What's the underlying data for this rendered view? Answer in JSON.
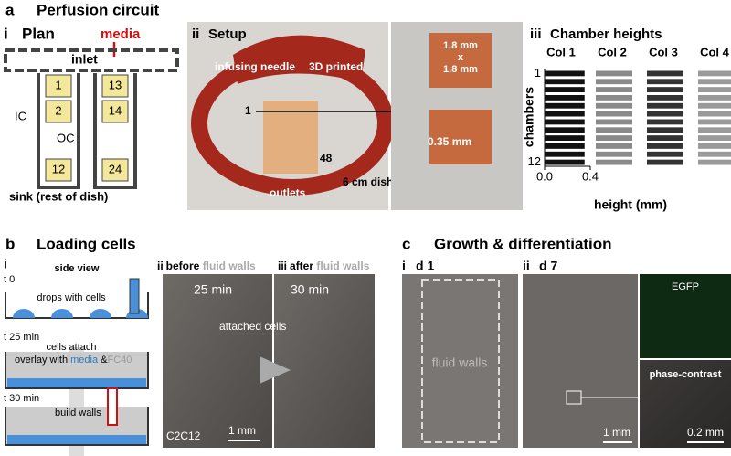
{
  "panel_a": {
    "letter": "a",
    "title": "Perfusion circuit",
    "plan": {
      "label": "i",
      "title": "Plan",
      "media": "media",
      "inlet": "inlet",
      "chambers": [
        "1",
        "13",
        "2",
        "14",
        "12",
        "24"
      ],
      "ic": "IC",
      "oc": "OC",
      "sink": "sink (rest of dish)"
    },
    "setup": {
      "label": "ii",
      "title": "Setup",
      "needle": "infusing needle",
      "printed": "3D printed",
      "first": "1",
      "last": "48",
      "outlets": "outlets",
      "dish": "6 cm dish",
      "size_lines": [
        "1.8 mm",
        "x",
        "1.8 mm"
      ],
      "gap": "0.35 mm"
    },
    "chart_data": {
      "type": "bar",
      "label": "iii",
      "title": "Chamber heights",
      "ylabel": "chambers",
      "xlabel": "height (mm)",
      "chamber_labels": [
        "1",
        null,
        null,
        null,
        null,
        null,
        null,
        null,
        null,
        null,
        null,
        "12"
      ],
      "xlim": [
        0,
        0.4
      ],
      "xticks": [
        {
          "value": 0,
          "label": "0.0"
        },
        0.4
      ],
      "series": [
        {
          "name": "Col 1",
          "color": "#111111",
          "values": [
            0.35,
            0.35,
            0.35,
            0.35,
            0.35,
            0.35,
            0.35,
            0.35,
            0.35,
            0.35,
            0.35,
            0.35
          ]
        },
        {
          "name": "Col 2",
          "color": "#8a8a8a",
          "values": [
            0.32,
            0.32,
            0.32,
            0.32,
            0.32,
            0.32,
            0.32,
            0.32,
            0.32,
            0.32,
            0.32,
            0.32
          ]
        },
        {
          "name": "Col 3",
          "color": "#333333",
          "values": [
            0.32,
            0.32,
            0.32,
            0.32,
            0.32,
            0.32,
            0.32,
            0.32,
            0.32,
            0.32,
            0.32,
            0.32
          ]
        },
        {
          "name": "Col 4",
          "color": "#9a9a9a",
          "values": [
            0.3,
            0.3,
            0.3,
            0.3,
            0.3,
            0.3,
            0.3,
            0.3,
            0.3,
            0.3,
            0.3,
            0.3
          ]
        }
      ]
    }
  },
  "panel_b": {
    "letter": "b",
    "title": "Loading cells",
    "side": {
      "label": "i",
      "title": "side view",
      "steps": [
        {
          "time": "t 0",
          "text": "drops with cells"
        },
        {
          "time": "t 25 min",
          "text": "cells attach"
        },
        {
          "time": "t 30 min",
          "text": "build walls"
        }
      ],
      "overlay": [
        "overlay with ",
        "media",
        " &",
        "FC40"
      ]
    },
    "before": {
      "label": "ii",
      "prefix": "before ",
      "walls": "fluid walls",
      "time": "25 min",
      "cells": "attached cells",
      "line": "C2C12",
      "scale": "1 mm"
    },
    "after": {
      "label": "iii",
      "prefix": "after ",
      "walls": "fluid walls",
      "time": "30 min"
    }
  },
  "panel_c": {
    "letter": "c",
    "title": "Growth & differentiation",
    "d1": {
      "label": "i",
      "day": "d 1",
      "walls": "fluid walls"
    },
    "d7": {
      "label": "ii",
      "day": "d 7",
      "scale": "1 mm"
    },
    "egfp": "EGFP",
    "phase": "phase-contrast",
    "scale2": "0.2 mm"
  }
}
